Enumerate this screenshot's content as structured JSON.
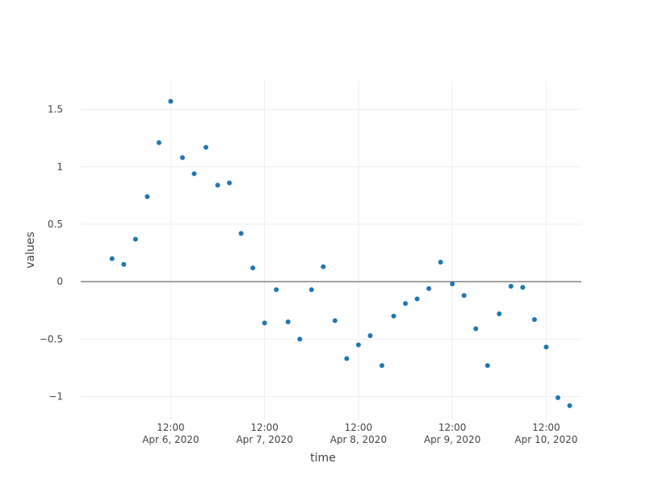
{
  "chart_data": {
    "type": "scatter",
    "xlabel": "time",
    "ylabel": "values",
    "marker_color": "#1f77b4",
    "grid": true,
    "x_range": [
      "2020-04-05T13:00",
      "2020-04-10T21:00"
    ],
    "y_range": [
      -1.2,
      1.75
    ],
    "x_ticks": [
      {
        "time": "2020-04-06T12:00",
        "line1": "12:00",
        "line2": "Apr 6, 2020"
      },
      {
        "time": "2020-04-07T12:00",
        "line1": "12:00",
        "line2": "Apr 7, 2020"
      },
      {
        "time": "2020-04-08T12:00",
        "line1": "12:00",
        "line2": "Apr 8, 2020"
      },
      {
        "time": "2020-04-09T12:00",
        "line1": "12:00",
        "line2": "Apr 9, 2020"
      },
      {
        "time": "2020-04-10T12:00",
        "line1": "12:00",
        "line2": "Apr 10, 2020"
      }
    ],
    "y_ticks": [
      {
        "value": -1,
        "label": "−1"
      },
      {
        "value": -0.5,
        "label": "−0.5"
      },
      {
        "value": 0,
        "label": "0"
      },
      {
        "value": 0.5,
        "label": "0.5"
      },
      {
        "value": 1,
        "label": "1"
      },
      {
        "value": 1.5,
        "label": "1.5"
      }
    ],
    "points": [
      {
        "x": "2020-04-05T21:00",
        "y": 0.2
      },
      {
        "x": "2020-04-06T00:00",
        "y": 0.15
      },
      {
        "x": "2020-04-06T03:00",
        "y": 0.37
      },
      {
        "x": "2020-04-06T06:00",
        "y": 0.74
      },
      {
        "x": "2020-04-06T09:00",
        "y": 1.21
      },
      {
        "x": "2020-04-06T12:00",
        "y": 1.57
      },
      {
        "x": "2020-04-06T15:00",
        "y": 1.08
      },
      {
        "x": "2020-04-06T18:00",
        "y": 0.94
      },
      {
        "x": "2020-04-06T21:00",
        "y": 1.17
      },
      {
        "x": "2020-04-07T00:00",
        "y": 0.84
      },
      {
        "x": "2020-04-07T03:00",
        "y": 0.86
      },
      {
        "x": "2020-04-07T06:00",
        "y": 0.42
      },
      {
        "x": "2020-04-07T09:00",
        "y": 0.12
      },
      {
        "x": "2020-04-07T12:00",
        "y": -0.36
      },
      {
        "x": "2020-04-07T15:00",
        "y": -0.07
      },
      {
        "x": "2020-04-07T18:00",
        "y": -0.35
      },
      {
        "x": "2020-04-07T21:00",
        "y": -0.5
      },
      {
        "x": "2020-04-08T00:00",
        "y": -0.07
      },
      {
        "x": "2020-04-08T03:00",
        "y": 0.13
      },
      {
        "x": "2020-04-08T06:00",
        "y": -0.34
      },
      {
        "x": "2020-04-08T09:00",
        "y": -0.67
      },
      {
        "x": "2020-04-08T12:00",
        "y": -0.55
      },
      {
        "x": "2020-04-08T15:00",
        "y": -0.47
      },
      {
        "x": "2020-04-08T18:00",
        "y": -0.73
      },
      {
        "x": "2020-04-08T21:00",
        "y": -0.3
      },
      {
        "x": "2020-04-09T00:00",
        "y": -0.19
      },
      {
        "x": "2020-04-09T03:00",
        "y": -0.15
      },
      {
        "x": "2020-04-09T06:00",
        "y": -0.06
      },
      {
        "x": "2020-04-09T09:00",
        "y": 0.17
      },
      {
        "x": "2020-04-09T12:00",
        "y": -0.02
      },
      {
        "x": "2020-04-09T15:00",
        "y": -0.12
      },
      {
        "x": "2020-04-09T18:00",
        "y": -0.41
      },
      {
        "x": "2020-04-09T21:00",
        "y": -0.73
      },
      {
        "x": "2020-04-10T00:00",
        "y": -0.28
      },
      {
        "x": "2020-04-10T03:00",
        "y": -0.04
      },
      {
        "x": "2020-04-10T06:00",
        "y": -0.05
      },
      {
        "x": "2020-04-10T09:00",
        "y": -0.33
      },
      {
        "x": "2020-04-10T12:00",
        "y": -0.57
      },
      {
        "x": "2020-04-10T15:00",
        "y": -1.01
      },
      {
        "x": "2020-04-10T18:00",
        "y": -1.08
      }
    ]
  }
}
